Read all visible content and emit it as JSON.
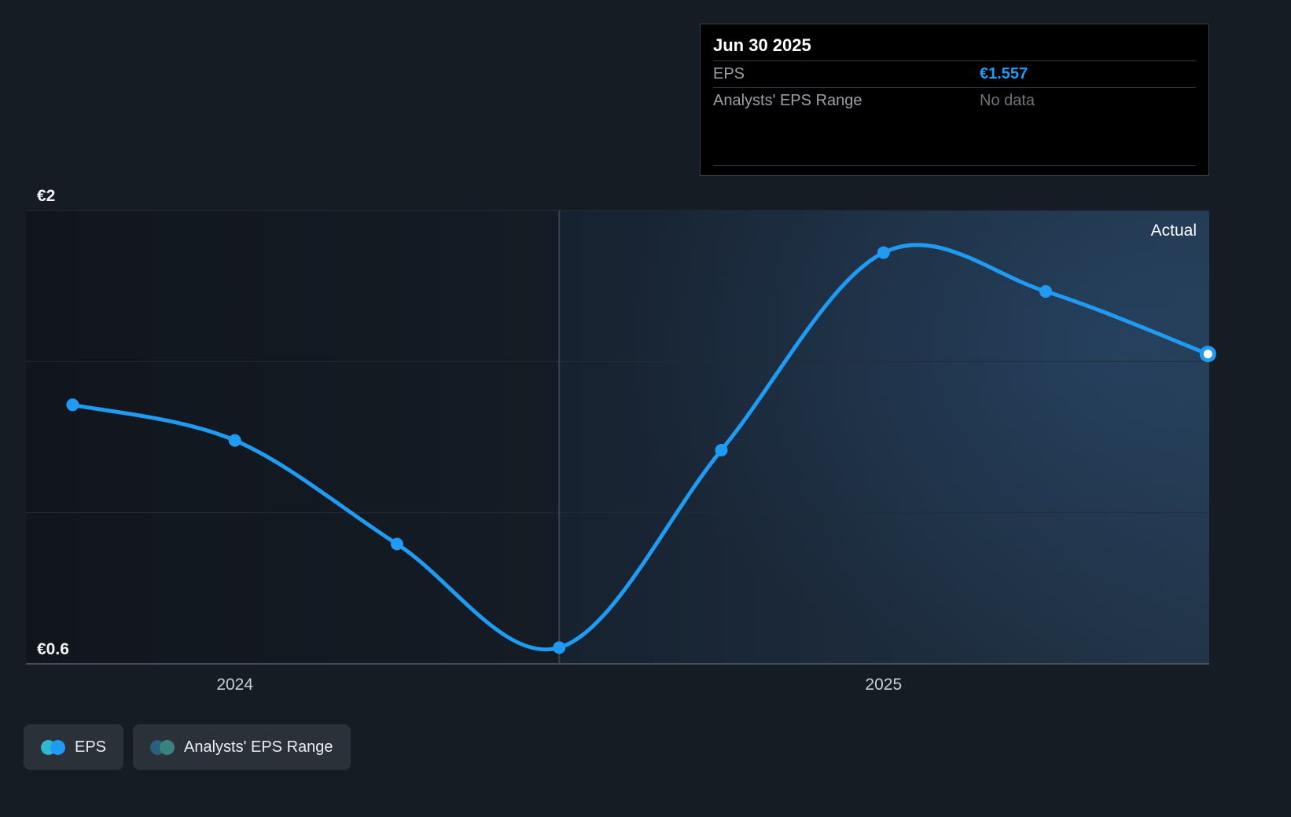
{
  "tooltip": {
    "title": "Jun 30 2025",
    "rows": [
      {
        "label": "EPS",
        "value": "€1.557",
        "style": "accent"
      },
      {
        "label": "Analysts' EPS Range",
        "value": "No data",
        "style": "muted"
      }
    ]
  },
  "chart_data": {
    "type": "line",
    "title": "EPS over time",
    "x_domain": [
      2023.678,
      2025.502
    ],
    "y_domain": [
      0.6,
      2.0
    ],
    "x_ticks": [
      {
        "value": 2024,
        "label": "2024"
      },
      {
        "value": 2025,
        "label": "2025"
      }
    ],
    "y_ticks": [
      {
        "value": 2.0,
        "label": "€2"
      },
      {
        "value": 0.6,
        "label": "€0.6"
      }
    ],
    "gridline_values": [
      2.0,
      1.5333,
      1.0667,
      0.6
    ],
    "divider_x": 2024.5,
    "actual_label": "Actual",
    "legend_position": "bottom-left",
    "series": [
      {
        "name": "EPS",
        "color": "#1f9bf4",
        "x": [
          2023.75,
          2024.0,
          2024.25,
          2024.5,
          2024.75,
          2025.0,
          2025.25,
          2025.5
        ],
        "values": [
          1.4,
          1.29,
          0.97,
          0.65,
          1.26,
          1.87,
          1.75,
          1.557
        ]
      }
    ]
  },
  "legend": [
    {
      "label": "EPS",
      "dot_colors": [
        "#2fb7d4",
        "#1f9bf4"
      ]
    },
    {
      "label": "Analysts' EPS Range",
      "dot_colors": [
        "#2a5f7d",
        "#3a8180"
      ]
    }
  ],
  "colors": {
    "accent": "#1f9bf4",
    "background": "#161c24",
    "tooltip_bg": "#000000"
  }
}
